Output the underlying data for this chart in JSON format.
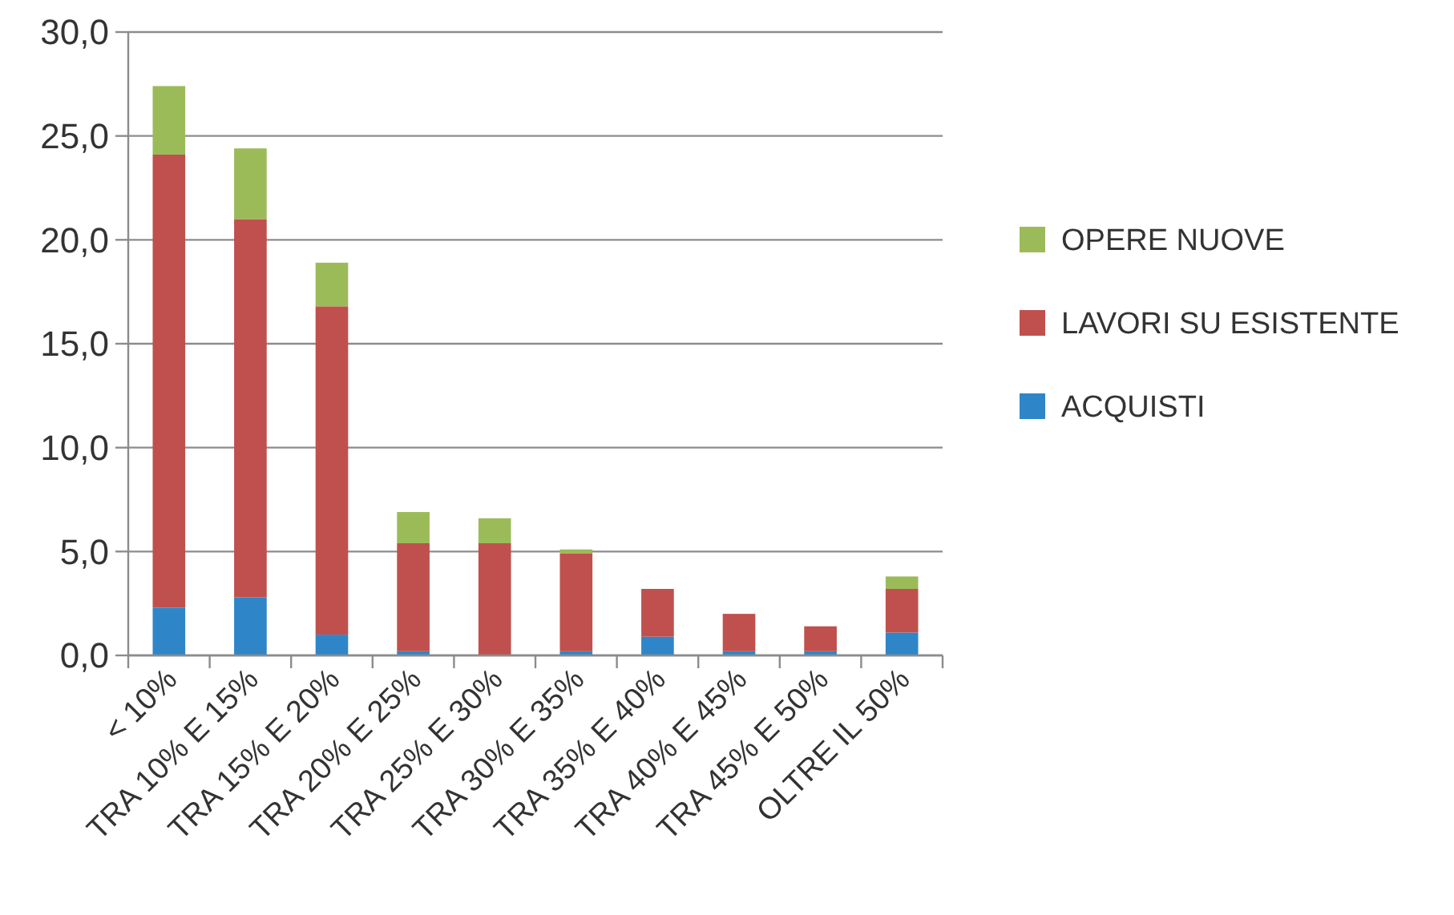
{
  "chart_data": {
    "type": "bar",
    "stacked": true,
    "categories": [
      "< 10%",
      "TRA 10% E 15%",
      "TRA 15% E 20%",
      "TRA 20% E 25%",
      "TRA 25% E 30%",
      "TRA 30% E 35%",
      "TRA 35% E 40%",
      "TRA 40% E 45%",
      "TRA 45% E 50%",
      "OLTRE IL 50%"
    ],
    "series": [
      {
        "name": "ACQUISTI",
        "color": "#2e86c8",
        "values": [
          2.3,
          2.8,
          1.0,
          0.2,
          0,
          0.2,
          0.9,
          0.2,
          0.2,
          1.1
        ]
      },
      {
        "name": "LAVORI SU ESISTENTE",
        "color": "#c0504d",
        "values": [
          21.8,
          18.2,
          15.8,
          5.2,
          5.4,
          4.7,
          2.3,
          1.8,
          1.2,
          2.1
        ]
      },
      {
        "name": "OPERE NUOVE",
        "color": "#9bbb59",
        "values": [
          3.3,
          3.4,
          2.1,
          1.5,
          1.2,
          0.2,
          0,
          0,
          0,
          0.6
        ]
      }
    ],
    "ylim": [
      0,
      30
    ],
    "yticks": [
      {
        "value": 0,
        "label": "0,0"
      },
      {
        "value": 5,
        "label": "5,0"
      },
      {
        "value": 10,
        "label": "10,0"
      },
      {
        "value": 15,
        "label": "15,0"
      },
      {
        "value": 20,
        "label": "20,0"
      },
      {
        "value": 25,
        "label": "25,0"
      },
      {
        "value": 30,
        "label": "30,0"
      }
    ],
    "grid": "y",
    "legend": "right"
  }
}
